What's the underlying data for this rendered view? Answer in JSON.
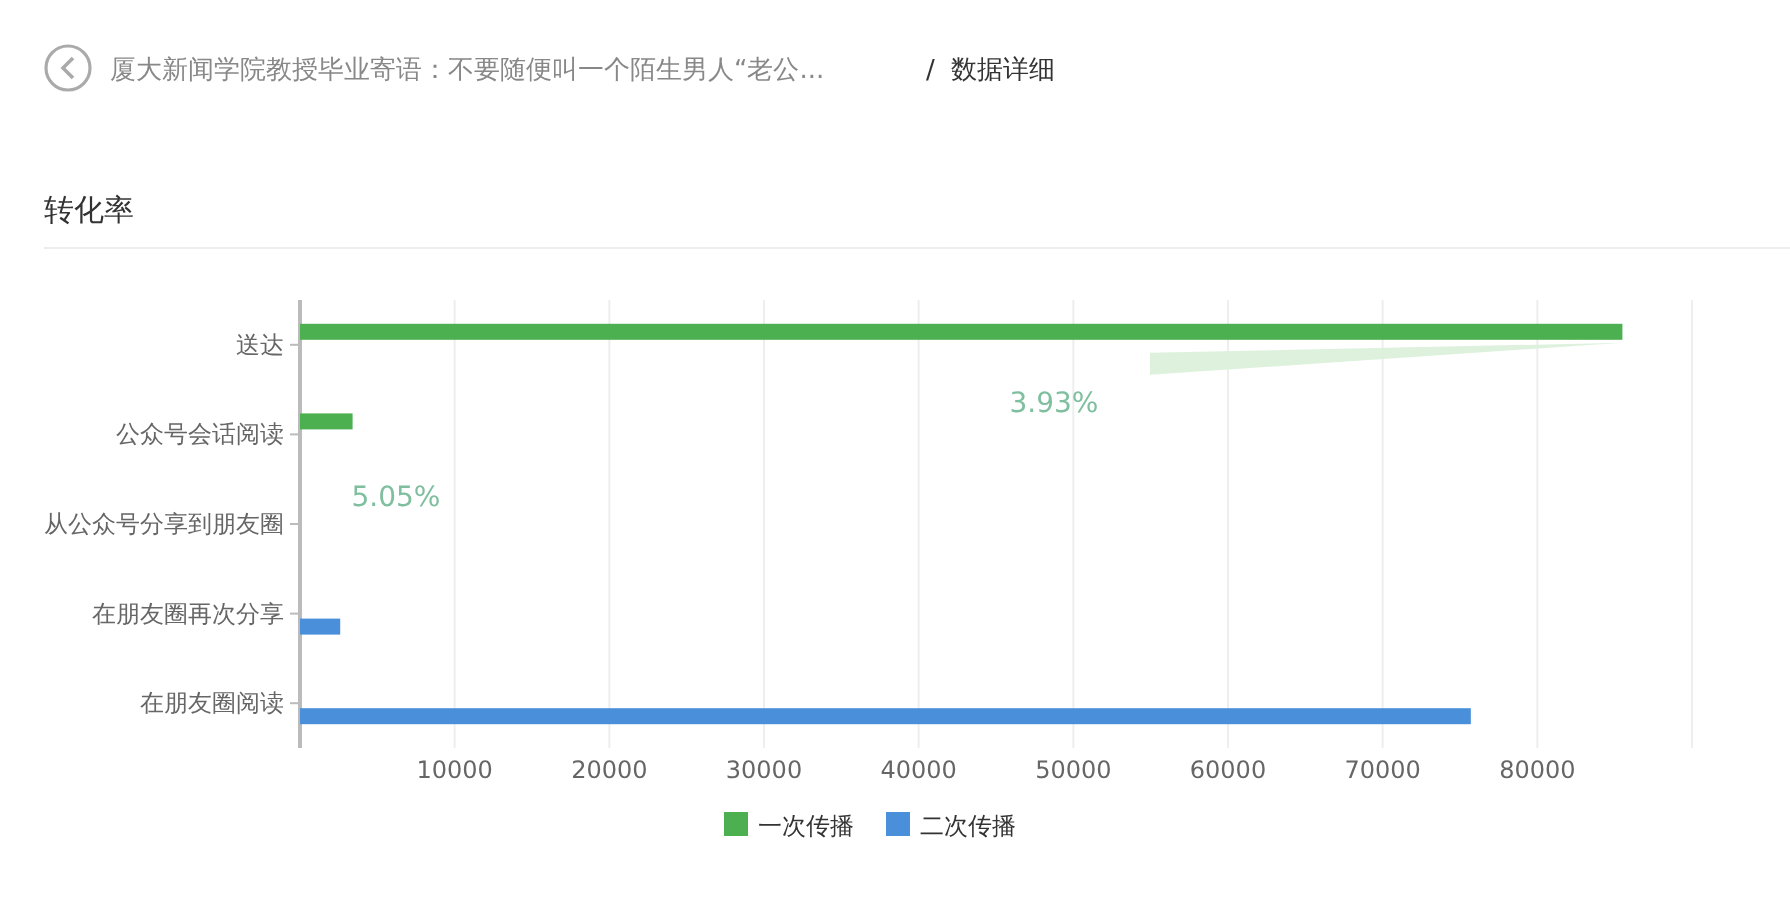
{
  "chart_data": {
    "type": "bar",
    "orientation": "horizontal",
    "title": "厦大新闻学院教授毕业寄语：不要随便叫一个陌生男人“老公...",
    "subtitle": "转化率",
    "categories": [
      "送达",
      "公众号会话阅读",
      "从公众号分享到朋友圈",
      "在朋友圈再次分享",
      "在朋友圈阅读"
    ],
    "series": [
      {
        "name": "一次传播",
        "color": "#4caf50",
        "values": [
          85500,
          3400,
          0,
          null,
          null
        ]
      },
      {
        "name": "二次传播",
        "color": "#4a8fd9",
        "values": [
          null,
          null,
          null,
          2600,
          75700
        ]
      }
    ],
    "xlim": [
      0,
      90000
    ],
    "xticks": [
      10000,
      20000,
      30000,
      40000,
      50000,
      60000,
      70000,
      80000,
      {
        "value": 90000,
        "label": null
      }
    ],
    "grid": "x",
    "legend": "bottom",
    "annotations": [
      "/  数据详细",
      "3.93%",
      "5.05%"
    ]
  }
}
